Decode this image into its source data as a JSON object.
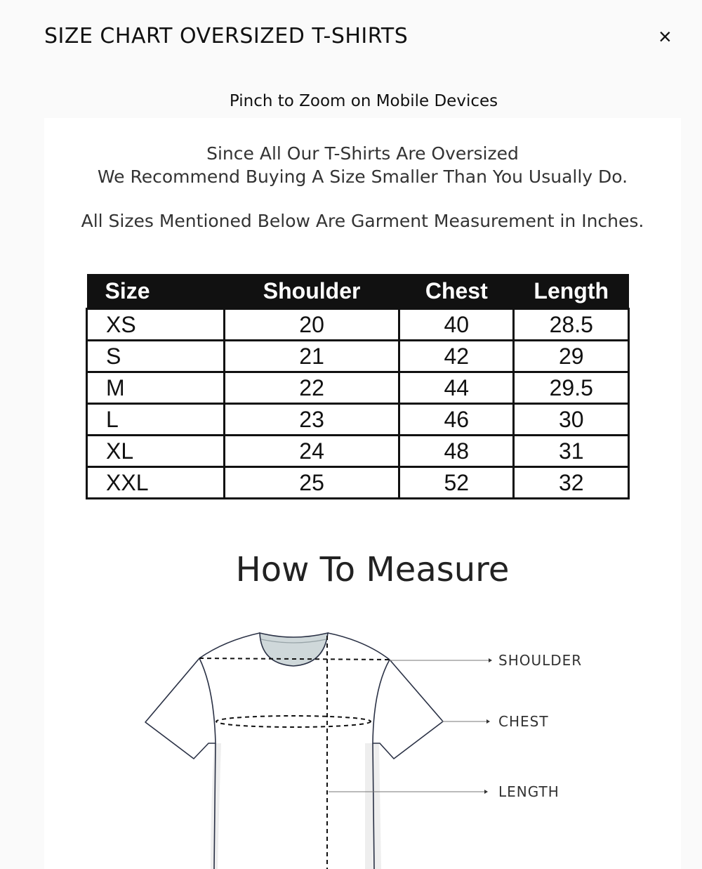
{
  "header": {
    "title": "SIZE CHART OVERSIZED T-SHIRTS",
    "close_label": "×"
  },
  "pinch_note": "Pinch to Zoom on Mobile Devices",
  "intro": {
    "line1": "Since All Our T-Shirts Are Oversized",
    "line2": "We Recommend Buying A Size Smaller Than You Usually Do.",
    "line3": "All Sizes Mentioned Below Are Garment Measurement in Inches."
  },
  "table": {
    "headers": [
      "Size",
      "Shoulder",
      "Chest",
      "Length"
    ],
    "rows": [
      [
        "XS",
        "20",
        "40",
        "28.5"
      ],
      [
        "S",
        "21",
        "42",
        "29"
      ],
      [
        "M",
        "22",
        "44",
        "29.5"
      ],
      [
        "L",
        "23",
        "46",
        "30"
      ],
      [
        "XL",
        "24",
        "48",
        "31"
      ],
      [
        "XXL",
        "25",
        "52",
        "32"
      ]
    ]
  },
  "how_to": {
    "title": "How To Measure",
    "labels": {
      "shoulder": "SHOULDER",
      "chest": "CHEST",
      "length": "LENGTH"
    }
  }
}
